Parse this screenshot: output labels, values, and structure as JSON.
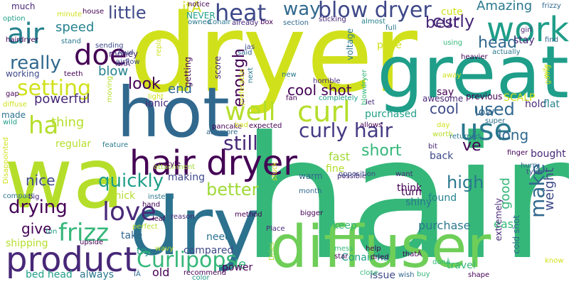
{
  "words": [
    {
      "text": "hair",
      "color": "#35b779"
    },
    {
      "text": "dryer",
      "color": "#d0e11c"
    },
    {
      "text": "great",
      "color": "#1f9e89"
    },
    {
      "text": "wa",
      "color": "#b5de2b"
    },
    {
      "text": "hot",
      "color": "#31688e"
    },
    {
      "text": "dry",
      "color": "#2c728e"
    },
    {
      "text": "diffuser",
      "color": "#6ece58"
    },
    {
      "text": "hair dryer",
      "color": "#440154"
    },
    {
      "text": "product",
      "color": "#482878"
    },
    {
      "text": "work",
      "color": "#1f9e89"
    },
    {
      "text": "doe",
      "color": "#440154"
    },
    {
      "text": "use",
      "color": "#2a788e"
    },
    {
      "text": "curl",
      "color": "#b5de2b"
    },
    {
      "text": "well",
      "color": "#b5de2b"
    },
    {
      "text": "heat",
      "color": "#3e4989"
    },
    {
      "text": "blow dryer",
      "color": "#3e4989"
    },
    {
      "text": "curly hair",
      "color": "#443a83"
    },
    {
      "text": "air",
      "color": "#26828e"
    },
    {
      "text": "love",
      "color": "#482878"
    },
    {
      "text": "frizz",
      "color": "#35b779"
    },
    {
      "text": "make",
      "color": "#31688e"
    },
    {
      "text": "Curlipops",
      "color": "#35b779"
    },
    {
      "text": "setting",
      "color": "#d0e11c"
    },
    {
      "text": "really",
      "color": "#31688e"
    },
    {
      "text": "quickly",
      "color": "#1f9e89"
    },
    {
      "text": "drying",
      "color": "#440154"
    },
    {
      "text": "ha",
      "color": "#b5de2b"
    },
    {
      "text": "still",
      "color": "#482878"
    },
    {
      "text": "enough",
      "color": "#440154"
    },
    {
      "text": "better",
      "color": "#a0da39"
    },
    {
      "text": "high",
      "color": "#2a788e"
    },
    {
      "text": "used",
      "color": "#31688e"
    },
    {
      "text": "way",
      "color": "#31688e"
    },
    {
      "text": "little",
      "color": "#3e4989"
    },
    {
      "text": "curly",
      "color": "#482878"
    },
    {
      "text": "best",
      "color": "#482878"
    },
    {
      "text": "head",
      "color": "#31688e"
    },
    {
      "text": "short",
      "color": "#35b779"
    },
    {
      "text": "long",
      "color": "#31688e"
    },
    {
      "text": "cool shot",
      "color": "#440154"
    },
    {
      "text": "cool",
      "color": "#3e4989"
    },
    {
      "text": "look",
      "color": "#440154"
    },
    {
      "text": "end",
      "color": "#31688e"
    },
    {
      "text": "speed",
      "color": "#26828e"
    },
    {
      "text": "blow",
      "color": "#26828e"
    },
    {
      "text": "powerful",
      "color": "#482878"
    },
    {
      "text": "thing",
      "color": "#b5de2b"
    },
    {
      "text": "nice",
      "color": "#3e4989"
    },
    {
      "text": "give",
      "color": "#440154"
    },
    {
      "text": "good",
      "color": "#35b779"
    },
    {
      "text": "weight",
      "color": "#3e4989"
    },
    {
      "text": "low",
      "color": "#31688e"
    },
    {
      "text": "ve",
      "color": "#440154"
    },
    {
      "text": "Amazing",
      "color": "#2a788e"
    },
    {
      "text": "itÂ",
      "color": "#d0e11c"
    },
    {
      "text": "much",
      "color": "#482878"
    },
    {
      "text": "stay",
      "color": "#482878"
    },
    {
      "text": "hold",
      "color": "#482878"
    },
    {
      "text": "flat",
      "color": "#26828e"
    },
    {
      "text": "bought",
      "color": "#482878"
    },
    {
      "text": "think",
      "color": "#440154"
    },
    {
      "text": "found",
      "color": "#26828e"
    },
    {
      "text": "easy",
      "color": "#35b779"
    },
    {
      "text": "purchase",
      "color": "#2a788e"
    },
    {
      "text": "purchased",
      "color": "#1f9e89"
    },
    {
      "text": "fast",
      "color": "#a0da39"
    },
    {
      "text": "back",
      "color": "#3e4989"
    },
    {
      "text": "turn",
      "color": "#440154"
    },
    {
      "text": "shiny",
      "color": "#2a788e"
    },
    {
      "text": "fine",
      "color": "#b5de2b"
    },
    {
      "text": "le",
      "color": "#35b779"
    },
    {
      "text": "need",
      "color": "#2c728e"
    },
    {
      "text": "take",
      "color": "#31688e"
    },
    {
      "text": "power",
      "color": "#440154"
    },
    {
      "text": "compared",
      "color": "#3e4989"
    },
    {
      "text": "Conair ha",
      "color": "#1f9e89"
    },
    {
      "text": "travel",
      "color": "#35b779"
    },
    {
      "text": "issue",
      "color": "#3e4989"
    },
    {
      "text": "keep",
      "color": "#35b779"
    },
    {
      "text": "shipping",
      "color": "#b5de2b"
    },
    {
      "text": "bed head",
      "color": "#1f9e89"
    },
    {
      "text": "always",
      "color": "#2a788e"
    },
    {
      "text": "old",
      "color": "#440154"
    },
    {
      "text": "ionic",
      "color": "#482878"
    },
    {
      "text": "try",
      "color": "#1f9e89"
    },
    {
      "text": "making",
      "color": "#3e4989"
    },
    {
      "text": "thick",
      "color": "#b5de2b"
    },
    {
      "text": "regular",
      "color": "#b5de2b"
    },
    {
      "text": "made",
      "color": "#2c728e"
    },
    {
      "text": "working",
      "color": "#3e4989"
    },
    {
      "text": "money",
      "color": "#482878"
    },
    {
      "text": "airflow",
      "color": "#3e4989"
    },
    {
      "text": "cute",
      "color": "#d0e11c"
    },
    {
      "text": "price",
      "color": "#d0e11c"
    },
    {
      "text": "say",
      "color": "#440154"
    },
    {
      "text": "warm",
      "color": "#31688e"
    },
    {
      "text": "extremely",
      "color": "#482878"
    },
    {
      "text": "cold shot",
      "color": "#31688e"
    },
    {
      "text": "SCALP",
      "color": "#d0e11c"
    },
    {
      "text": "previous",
      "color": "#440154"
    },
    {
      "text": "awesome",
      "color": "#482878"
    },
    {
      "text": "straight",
      "color": "#35b779"
    },
    {
      "text": "voltage",
      "color": "#2a788e"
    },
    {
      "text": "score",
      "color": "#482878"
    },
    {
      "text": "getting",
      "color": "#440154"
    },
    {
      "text": "NEVER",
      "color": "#1f9e89"
    },
    {
      "text": "box",
      "color": "#440154"
    },
    {
      "text": "house",
      "color": "#440154"
    },
    {
      "text": "option",
      "color": "#1f9e89"
    },
    {
      "text": "hairdryer",
      "color": "#440154"
    },
    {
      "text": "section",
      "color": "#31688e"
    },
    {
      "text": "almost",
      "color": "#26828e"
    },
    {
      "text": "sticking",
      "color": "#482878"
    },
    {
      "text": "frizzy",
      "color": "#31688e"
    },
    {
      "text": "girl",
      "color": "#482878"
    },
    {
      "text": "find",
      "color": "#31688e"
    },
    {
      "text": "heavier",
      "color": "#440154"
    },
    {
      "text": "actually",
      "color": "#2a788e"
    },
    {
      "text": "wife",
      "color": "#d0e11c"
    },
    {
      "text": "going",
      "color": "#d0e11c"
    },
    {
      "text": "horrible",
      "color": "#482878"
    },
    {
      "text": "completely",
      "color": "#1f9e89"
    },
    {
      "text": "light",
      "color": "#d0e11c"
    },
    {
      "text": "fan",
      "color": "#440154"
    },
    {
      "text": "new",
      "color": "#2a788e"
    },
    {
      "text": "pancake",
      "color": "#440154"
    },
    {
      "text": "bad",
      "color": "#d0e11c"
    },
    {
      "text": "expected",
      "color": "#440154"
    },
    {
      "text": "anymore",
      "color": "#31688e"
    },
    {
      "text": "feature",
      "color": "#2a788e"
    },
    {
      "text": "attachment",
      "color": "#a0da39"
    },
    {
      "text": "style",
      "color": "#440154"
    },
    {
      "text": "instead",
      "color": "#2a788e"
    },
    {
      "text": "hand",
      "color": "#440154"
    },
    {
      "text": "perfect",
      "color": "#b5de2b"
    },
    {
      "text": "upside",
      "color": "#440154"
    },
    {
      "text": "wavy",
      "color": "#b5de2b"
    },
    {
      "text": "recommend",
      "color": "#440154"
    },
    {
      "text": "color",
      "color": "#1f9e89"
    },
    {
      "text": "mess",
      "color": "#35b779"
    },
    {
      "text": "help",
      "color": "#440154"
    },
    {
      "text": "dried",
      "color": "#440154"
    },
    {
      "text": "star",
      "color": "#440154"
    },
    {
      "text": "close",
      "color": "#35b779"
    },
    {
      "text": "buy",
      "color": "#35b779"
    },
    {
      "text": "donÂ",
      "color": "#35b779"
    },
    {
      "text": "shape",
      "color": "#440154"
    },
    {
      "text": "know",
      "color": "#d0e11c"
    },
    {
      "text": "thatÂ",
      "color": "#440154"
    },
    {
      "text": "wish",
      "color": "#31688e"
    },
    {
      "text": "hurry",
      "color": "#31688e"
    },
    {
      "text": "type",
      "color": "#3e4989"
    },
    {
      "text": "finger",
      "color": "#440154"
    },
    {
      "text": "returned",
      "color": "#2a788e"
    },
    {
      "text": "possible",
      "color": "#482878"
    },
    {
      "text": "want",
      "color": "#482878"
    },
    {
      "text": "month",
      "color": "#31688e"
    },
    {
      "text": "bigger",
      "color": "#440154"
    },
    {
      "text": "method",
      "color": "#440154"
    },
    {
      "text": "Place",
      "color": "#482878"
    },
    {
      "text": "reason",
      "color": "#482878"
    },
    {
      "text": "leaf",
      "color": "#440154"
    },
    {
      "text": "compact",
      "color": "#2c728e"
    },
    {
      "text": "big",
      "color": "#482878"
    },
    {
      "text": "ton",
      "color": "#1f9e89"
    },
    {
      "text": "Disappointed",
      "color": "#d0e11c"
    },
    {
      "text": "wild",
      "color": "#1f9e89"
    },
    {
      "text": "diffuse",
      "color": "#d0e11c"
    },
    {
      "text": "gap",
      "color": "#440154"
    },
    {
      "text": "teeth",
      "color": "#440154"
    },
    {
      "text": "sending",
      "color": "#3e4989"
    },
    {
      "text": "stand",
      "color": "#2a788e"
    },
    {
      "text": "minute",
      "color": "#d0e11c"
    },
    {
      "text": "notice",
      "color": "#440154"
    },
    {
      "text": "owned",
      "color": "#2a788e"
    },
    {
      "text": "Conair",
      "color": "#2a788e"
    },
    {
      "text": "already",
      "color": "#482878"
    },
    {
      "text": "full",
      "color": "#2a788e"
    },
    {
      "text": "using",
      "color": "#35b779"
    },
    {
      "text": "loud",
      "color": "#3e4989"
    },
    {
      "text": "isnÂ",
      "color": "#482878"
    },
    {
      "text": "replace",
      "color": "#d0e11c"
    },
    {
      "text": "said",
      "color": "#31688e"
    },
    {
      "text": "next",
      "color": "#2a788e"
    },
    {
      "text": "preferable",
      "color": "#d0e11c"
    },
    {
      "text": "blowdryer",
      "color": "#35b779"
    },
    {
      "text": "let",
      "color": "#482878"
    },
    {
      "text": "allows",
      "color": "#440154"
    },
    {
      "text": "day",
      "color": "#d0e11c"
    },
    {
      "text": "worth",
      "color": "#b5de2b"
    },
    {
      "text": "super",
      "color": "#2c728e"
    },
    {
      "text": "bit",
      "color": "#482878"
    },
    {
      "text": "away",
      "color": "#d0e11c"
    },
    {
      "text": "moving",
      "color": "#b5de2b"
    },
    {
      "text": "opposition",
      "color": "#3e4989"
    },
    {
      "text": "stuck",
      "color": "#d0e11c"
    },
    {
      "text": "Dries",
      "color": "#b5de2b"
    },
    {
      "text": "IÂ",
      "color": "#31688e"
    },
    {
      "text": "jas",
      "color": "#3e4989"
    }
  ]
}
